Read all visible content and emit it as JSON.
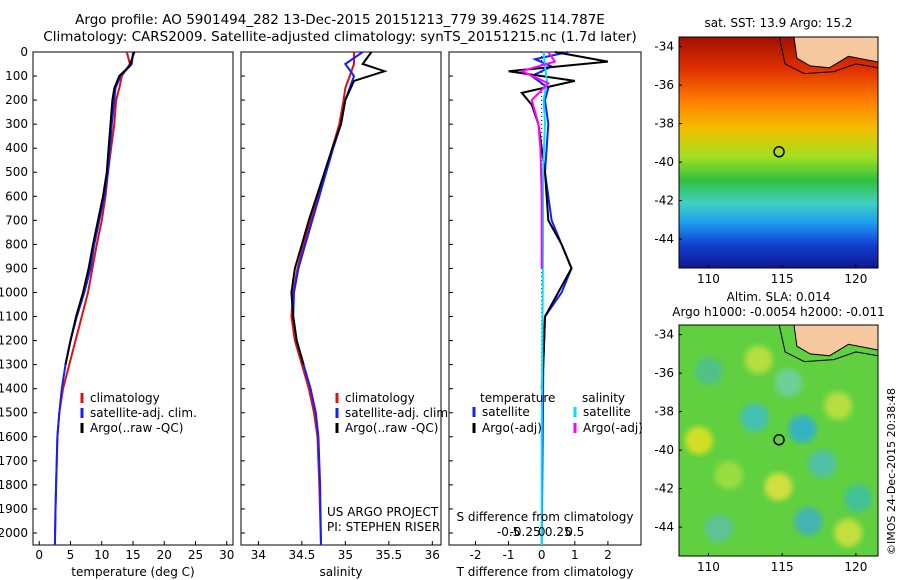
{
  "titles": {
    "line1": "Argo profile: AO 5901494_282 13-Dec-2015 20151213_779 39.462S 114.787E",
    "line2": "Climatology: CARS2009. Satellite-adjusted climatology: synTS_20151215.nc (1.7d later)"
  },
  "colors": {
    "climatology": "#e01010",
    "satellite": "#1020ff",
    "argo": "#000000",
    "cyan": "#00e0ff",
    "magenta": "#ff00ff"
  },
  "chart_data": [
    {
      "type": "line",
      "id": "temperature",
      "xlabel": "temperature (deg C)",
      "xlim": [
        -1,
        31
      ],
      "xticks": [
        0,
        5,
        10,
        15,
        20,
        25,
        30
      ],
      "xticklabels": [
        "0",
        "5",
        "10",
        "15",
        "20",
        "25",
        "30"
      ],
      "ylim": [
        0,
        2050
      ],
      "yticks": [
        0,
        100,
        200,
        300,
        400,
        500,
        600,
        700,
        800,
        900,
        1000,
        1100,
        1200,
        1300,
        1400,
        1500,
        1600,
        1700,
        1800,
        1900,
        2000
      ],
      "legend": {
        "placement": "lower-middle",
        "entries": [
          "climatology",
          "satellite-adj. clim.",
          "Argo(..raw -QC)"
        ]
      },
      "series": [
        {
          "name": "climatology",
          "color": "#e01010",
          "x": [
            14.0,
            14.5,
            13.2,
            12.8,
            12.3,
            12.0,
            11.5,
            11.0,
            10.6,
            10.0,
            9.2,
            8.5,
            7.8,
            6.8,
            5.8,
            4.8,
            3.8,
            3.2,
            2.9,
            2.7,
            2.6,
            2.5
          ],
          "y": [
            0,
            50,
            100,
            150,
            200,
            300,
            400,
            500,
            600,
            700,
            800,
            900,
            1000,
            1100,
            1200,
            1300,
            1400,
            1500,
            1600,
            1800,
            1900,
            2050
          ]
        },
        {
          "name": "satellite-adj. clim.",
          "color": "#1020ff",
          "x": [
            15.0,
            14.8,
            13.0,
            12.2,
            12.0,
            11.6,
            11.3,
            11.0,
            10.4,
            9.6,
            8.8,
            8.2,
            7.2,
            6.0,
            5.0,
            4.2,
            3.6,
            3.2,
            2.9,
            2.7,
            2.6,
            2.5
          ],
          "y": [
            0,
            50,
            100,
            150,
            200,
            300,
            400,
            500,
            600,
            700,
            800,
            900,
            1000,
            1100,
            1200,
            1300,
            1400,
            1500,
            1600,
            1800,
            1900,
            2050
          ]
        },
        {
          "name": "Argo(..raw -QC)",
          "color": "#000000",
          "x": [
            15.2,
            14.4,
            12.8,
            12.0,
            11.7,
            11.4,
            11.1,
            10.8,
            10.2,
            9.4,
            8.6,
            7.9,
            7.0,
            5.9,
            5.0,
            4.2
          ]
        },
        {
          "name": "Argo-depth",
          "y": [
            0,
            60,
            100,
            150,
            200,
            300,
            400,
            500,
            600,
            700,
            800,
            900,
            1000,
            1100,
            1200,
            1300
          ]
        }
      ]
    },
    {
      "type": "line",
      "id": "salinity",
      "xlabel": "salinity",
      "xlim": [
        33.8,
        36.1
      ],
      "xticks": [
        34,
        34.5,
        35,
        35.5,
        36
      ],
      "xticklabels": [
        "34",
        "34.5",
        "35",
        "35.5",
        "36"
      ],
      "ylim": [
        0,
        2050
      ],
      "legend": {
        "placement": "lower-right",
        "entries": [
          "climatology",
          "satellite-adj. clim.",
          "Argo(..raw -QC)"
        ]
      },
      "series": [
        {
          "name": "climatology",
          "color": "#e01010",
          "x": [
            35.1,
            35.1,
            35.05,
            35.0,
            34.98,
            34.93,
            34.85,
            34.77,
            34.68,
            34.6,
            34.52,
            34.45,
            34.4,
            34.38,
            34.42,
            34.5,
            34.58,
            34.64,
            34.68,
            34.7,
            34.72
          ],
          "y": [
            0,
            50,
            100,
            150,
            200,
            300,
            400,
            500,
            600,
            700,
            800,
            900,
            1000,
            1100,
            1200,
            1300,
            1400,
            1500,
            1600,
            1800,
            2050
          ]
        },
        {
          "name": "satellite-adj. clim.",
          "color": "#1020ff",
          "x": [
            35.2,
            35.0,
            35.1,
            35.05,
            35.0,
            34.95,
            34.86,
            34.78,
            34.7,
            34.62,
            34.54,
            34.46,
            34.41,
            34.4,
            34.44,
            34.52,
            34.6,
            34.66,
            34.69,
            34.71,
            34.72
          ],
          "y": [
            0,
            50,
            100,
            150,
            200,
            300,
            400,
            500,
            600,
            700,
            800,
            900,
            1000,
            1100,
            1200,
            1300,
            1400,
            1500,
            1600,
            1800,
            2050
          ]
        },
        {
          "name": "Argo(..raw -QC)",
          "color": "#000000",
          "x": [
            35.3,
            35.2,
            35.45,
            35.1,
            35.0,
            34.95,
            34.85,
            34.76,
            34.67,
            34.58,
            34.5,
            34.42,
            34.38,
            34.4,
            34.44,
            34.52
          ]
        },
        {
          "name": "Argo-depth",
          "y": [
            0,
            50,
            80,
            120,
            200,
            300,
            400,
            500,
            600,
            700,
            800,
            900,
            1000,
            1100,
            1200,
            1300
          ]
        }
      ],
      "annotations": [
        "US ARGO PROJECT",
        "PI: STEPHEN RISER"
      ]
    },
    {
      "type": "line",
      "id": "differences",
      "xlabel": "T difference from climatology",
      "xlim": [
        -2.8,
        3.0
      ],
      "xticks": [
        -2,
        -1,
        0,
        1,
        2
      ],
      "xticklabels": [
        "-2",
        "-1",
        "0",
        "1",
        "2"
      ],
      "top_xlabel": "S difference from climatology",
      "top_xticks": [
        -0.5,
        -0.25,
        0,
        0.25,
        0.5
      ],
      "top_xticklabels": [
        "-0.5",
        "-0.25",
        "0",
        "0.25",
        "0.5"
      ],
      "ylim": [
        0,
        2050
      ],
      "legend": {
        "placement": "lower-middle",
        "groups": [
          {
            "title": "temperature",
            "entries": [
              "satellite",
              "Argo(-adj)"
            ]
          },
          {
            "title": "salinity",
            "entries": [
              "satellite",
              "Argo(-adj)"
            ]
          }
        ]
      },
      "series": [
        {
          "name": "temperature satellite",
          "color": "#1020ff",
          "x": [
            0.8,
            -0.2,
            0.3,
            -0.3,
            0.2,
            0.1,
            0.2,
            0.1,
            0.3,
            0.6,
            0.9,
            0.6,
            0.1,
            0.05,
            0.03,
            0.0
          ],
          "y": [
            0,
            30,
            60,
            100,
            150,
            200,
            300,
            500,
            700,
            800,
            900,
            1000,
            1100,
            1300,
            1600,
            2050
          ]
        },
        {
          "name": "temperature Argo(-adj)",
          "color": "#000000",
          "x": [
            0.4,
            2.0,
            -1.0,
            1.0,
            -0.6,
            -0.3,
            -0.1,
            0.1,
            0.2,
            0.6,
            0.9,
            0.5,
            0.1,
            0.05,
            0.0
          ],
          "y": [
            0,
            40,
            80,
            120,
            170,
            220,
            300,
            500,
            700,
            800,
            900,
            1000,
            1100,
            1300,
            1400
          ]
        },
        {
          "name": "salinity satellite",
          "color": "#00e0ff",
          "x": [
            0.03,
            0.05,
            0.08,
            0.03,
            0.05,
            0.02,
            0.02,
            0.01,
            0.0,
            0.0
          ],
          "y": [
            0,
            60,
            120,
            200,
            300,
            500,
            800,
            1200,
            1600,
            2050
          ]
        },
        {
          "name": "salinity Argo(-adj)",
          "color": "#ff00ff",
          "x": [
            0.1,
            0.2,
            -0.3,
            0.1,
            -0.15,
            -0.05,
            -0.02,
            0.0,
            0.0
          ],
          "y": [
            0,
            40,
            80,
            130,
            200,
            300,
            400,
            600,
            900
          ]
        }
      ]
    },
    {
      "type": "heatmap",
      "id": "sst-map",
      "title": "sat. SST: 13.9  Argo: 15.2",
      "xlim": [
        108,
        121.5
      ],
      "ylim": [
        -45.5,
        -33.5
      ],
      "xticks": [
        110,
        115,
        120
      ],
      "yticks": [
        -34,
        -36,
        -38,
        -40,
        -42,
        -44
      ],
      "xticklabels": [
        "110",
        "115",
        "120"
      ],
      "yticklabels": [
        "-34",
        "-36",
        "-38",
        "-40",
        "-42",
        "-44"
      ],
      "colormap": "jet",
      "marker": {
        "lon": 114.787,
        "lat": -39.462
      }
    },
    {
      "type": "heatmap",
      "id": "sla-map",
      "title": "Altim. SLA: 0.014",
      "subtitle": "Argo h1000: -0.0054  h2000: -0.011",
      "xlim": [
        108,
        121.5
      ],
      "ylim": [
        -45.5,
        -33.5
      ],
      "xticks": [
        110,
        115,
        120
      ],
      "yticks": [
        -34,
        -36,
        -38,
        -40,
        -42,
        -44
      ],
      "xticklabels": [
        "110",
        "115",
        "120"
      ],
      "yticklabels": [
        "-34",
        "-36",
        "-38",
        "-40",
        "-42",
        "-44"
      ],
      "colormap": "jet",
      "marker": {
        "lon": 114.787,
        "lat": -39.462
      }
    }
  ],
  "watermark": "©IMOS 24-Dec-2015 20:38:48"
}
